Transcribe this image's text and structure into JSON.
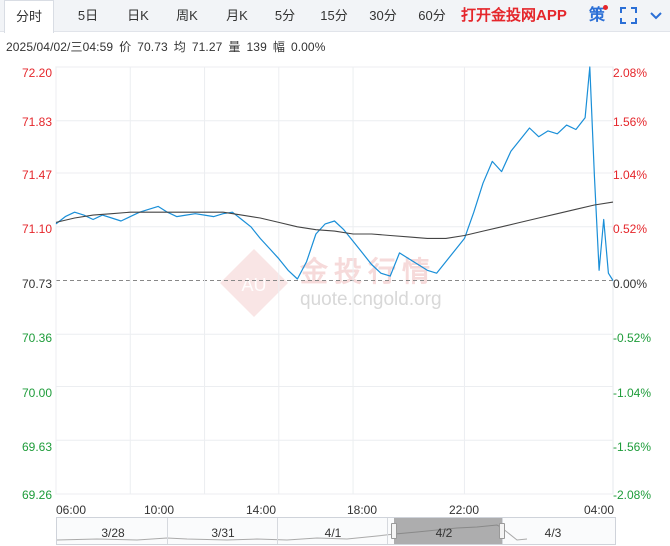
{
  "toolbar": {
    "tabs": [
      {
        "label": "分时",
        "active": true
      },
      {
        "label": "5日",
        "active": false
      },
      {
        "label": "日K",
        "active": false
      },
      {
        "label": "周K",
        "active": false
      },
      {
        "label": "月K",
        "active": false
      },
      {
        "label": "5分",
        "active": false
      },
      {
        "label": "15分",
        "active": false
      },
      {
        "label": "30分",
        "active": false
      },
      {
        "label": "60分",
        "active": false
      }
    ],
    "app_promo": "打开金投网APP",
    "ce_icon": "策",
    "fullscreen_icon": "fullscreen-icon",
    "menu_icon": "chevron-down-icon",
    "colors": {
      "promo": "#e5262b",
      "accent": "#2b6fd6"
    }
  },
  "info": {
    "datetime": "2025/04/02/三04:59",
    "price_label": "价",
    "price": "70.73",
    "avg_label": "均",
    "avg": "71.27",
    "volume_label": "量",
    "volume": "139",
    "change_label": "幅",
    "change": "0.00%"
  },
  "watermark": {
    "brand": "金投行情",
    "url": "quote.cngold.org",
    "logo_text": "AU"
  },
  "navigator": {
    "dates": [
      "3/28",
      "3/31",
      "4/1",
      "4/2",
      "4/3"
    ],
    "selected": "4/2"
  },
  "chart_data": {
    "type": "line",
    "base_price": 70.73,
    "y_ticks": [
      "72.20",
      "71.83",
      "71.47",
      "71.10",
      "70.73",
      "70.36",
      "70.00",
      "69.63",
      "69.26"
    ],
    "y_pct_ticks": [
      "2.08%",
      "1.56%",
      "1.04%",
      "0.52%",
      "0.00%",
      "-0.52%",
      "-1.04%",
      "-1.56%",
      "-2.08%"
    ],
    "x_ticks": [
      "06:00",
      "10:00",
      "14:00",
      "18:00",
      "22:00",
      "04:00"
    ],
    "ylim": [
      69.26,
      72.2
    ],
    "grid": true,
    "colors": {
      "price": "#1a8fd8",
      "avg": "#444444",
      "up": "#e5262b",
      "down": "#1e9c3a"
    },
    "series": [
      {
        "role": "price",
        "x": [
          0,
          0.5,
          1.0,
          1.5,
          2.0,
          2.5,
          3.0,
          3.5,
          4.0,
          4.5,
          5.0,
          5.5,
          6.0,
          6.5,
          7.0,
          7.5,
          8.0,
          8.5,
          9.0,
          9.5,
          10.0,
          10.5,
          11.0,
          11.5,
          12.0,
          12.5,
          13.0,
          13.5,
          14.0,
          14.5,
          15.0,
          15.5,
          16.0,
          16.5,
          17.0,
          17.5,
          18.0,
          18.5,
          19.0,
          19.5,
          20.0,
          20.5,
          21.0,
          21.5,
          22.0,
          22.5,
          23.0,
          23.5,
          24.0,
          24.5,
          25.0,
          25.5,
          26.0,
          26.5,
          27.0,
          27.5,
          28.0,
          28.5,
          28.75,
          29.0,
          29.25,
          29.5,
          29.75,
          30.0
        ],
        "values": [
          71.12,
          71.17,
          71.2,
          71.18,
          71.15,
          71.18,
          71.16,
          71.14,
          71.17,
          71.2,
          71.22,
          71.24,
          71.2,
          71.17,
          71.18,
          71.19,
          71.18,
          71.17,
          71.19,
          71.2,
          71.15,
          71.1,
          71.02,
          70.95,
          70.88,
          70.8,
          70.74,
          70.86,
          71.05,
          71.12,
          71.14,
          71.08,
          71.0,
          70.92,
          70.84,
          70.78,
          70.76,
          70.92,
          70.88,
          70.84,
          70.8,
          70.78,
          70.86,
          70.94,
          71.02,
          71.2,
          71.4,
          71.55,
          71.48,
          71.62,
          71.7,
          71.78,
          71.72,
          71.76,
          71.74,
          71.8,
          71.77,
          71.85,
          72.2,
          71.45,
          70.8,
          71.15,
          70.78,
          70.73
        ]
      },
      {
        "role": "average",
        "x": [
          0,
          1,
          2,
          3,
          4,
          5,
          6,
          7,
          8,
          9,
          10,
          11,
          12,
          13,
          14,
          15,
          16,
          17,
          18,
          19,
          20,
          21,
          22,
          23,
          24,
          25,
          26,
          27,
          28,
          29,
          30
        ],
        "values": [
          71.13,
          71.16,
          71.18,
          71.19,
          71.2,
          71.2,
          71.2,
          71.2,
          71.2,
          71.2,
          71.18,
          71.16,
          71.13,
          71.1,
          71.08,
          71.07,
          71.05,
          71.05,
          71.04,
          71.03,
          71.02,
          71.02,
          71.04,
          71.07,
          71.1,
          71.13,
          71.16,
          71.19,
          71.22,
          71.25,
          71.27
        ]
      }
    ],
    "x_range_hours": [
      0,
      30
    ]
  }
}
